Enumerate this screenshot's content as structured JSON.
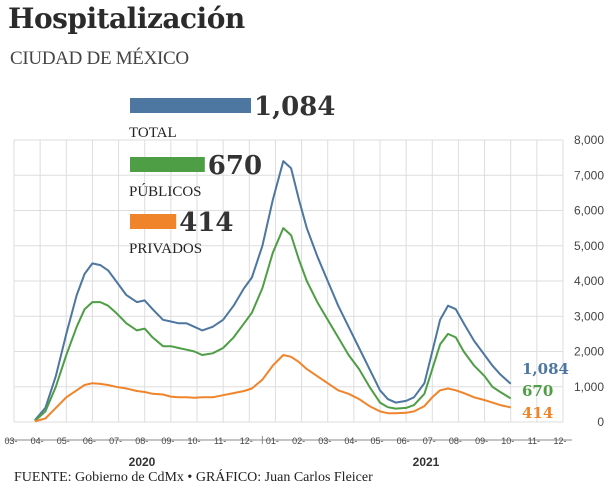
{
  "header": {
    "title": "Hospitalización",
    "subtitle": "CIUDAD DE MÉXICO"
  },
  "footer": {
    "source": "FUENTE: Gobierno de CdMx • GRÁFICO: Juan Carlos Fleicer"
  },
  "colors": {
    "total": "#4d76a0",
    "publicos": "#4e9e45",
    "privados": "#f0842a",
    "grid": "#dddddd",
    "axis": "#888888"
  },
  "chart_data": {
    "type": "line",
    "title": "Hospitalización",
    "subtitle": "CIUDAD DE MÉXICO",
    "ylim": [
      0,
      8000
    ],
    "yticks": [
      0,
      1000,
      2000,
      3000,
      4000,
      5000,
      6000,
      7000,
      8000
    ],
    "ytick_labels": [
      "0",
      "1,000",
      "2,000",
      "3,000",
      "4,000",
      "5,000",
      "6,000",
      "7,000",
      "8,000"
    ],
    "grid": true,
    "x_months": [
      {
        "label": "03-",
        "year": "2020"
      },
      {
        "label": "04-",
        "year": "2020"
      },
      {
        "label": "05-",
        "year": "2020"
      },
      {
        "label": "06-",
        "year": "2020"
      },
      {
        "label": "07-",
        "year": "2020"
      },
      {
        "label": "08-",
        "year": "2020"
      },
      {
        "label": "09-",
        "year": "2020"
      },
      {
        "label": "10-",
        "year": "2020"
      },
      {
        "label": "11-",
        "year": "2020"
      },
      {
        "label": "12-",
        "year": "2020"
      },
      {
        "label": "01-",
        "year": "2021"
      },
      {
        "label": "02-",
        "year": "2021"
      },
      {
        "label": "03-",
        "year": "2021"
      },
      {
        "label": "04-",
        "year": "2021"
      },
      {
        "label": "05-",
        "year": "2021"
      },
      {
        "label": "06-",
        "year": "2021"
      },
      {
        "label": "07-",
        "year": "2021"
      },
      {
        "label": "08-",
        "year": "2021"
      },
      {
        "label": "09-",
        "year": "2021"
      },
      {
        "label": "10-",
        "year": "2021"
      },
      {
        "label": "11-",
        "year": "2021"
      },
      {
        "label": "12-",
        "year": "2021"
      }
    ],
    "years": [
      "2020",
      "2021"
    ],
    "series": [
      {
        "key": "total",
        "name": "TOTAL",
        "latest": "1,084",
        "points": [
          [
            3.8,
            50
          ],
          [
            4.2,
            400
          ],
          [
            4.6,
            1300
          ],
          [
            5.0,
            2500
          ],
          [
            5.4,
            3600
          ],
          [
            5.7,
            4200
          ],
          [
            6.0,
            4500
          ],
          [
            6.3,
            4450
          ],
          [
            6.6,
            4300
          ],
          [
            6.9,
            4000
          ],
          [
            7.3,
            3600
          ],
          [
            7.7,
            3400
          ],
          [
            8.0,
            3450
          ],
          [
            8.3,
            3200
          ],
          [
            8.7,
            2900
          ],
          [
            9.0,
            2850
          ],
          [
            9.3,
            2800
          ],
          [
            9.6,
            2800
          ],
          [
            9.9,
            2700
          ],
          [
            10.2,
            2600
          ],
          [
            10.6,
            2700
          ],
          [
            11.0,
            2900
          ],
          [
            11.4,
            3300
          ],
          [
            11.8,
            3800
          ],
          [
            12.1,
            4100
          ],
          [
            12.5,
            5000
          ],
          [
            12.9,
            6300
          ],
          [
            13.3,
            7400
          ],
          [
            13.6,
            7200
          ],
          [
            13.9,
            6300
          ],
          [
            14.2,
            5500
          ],
          [
            14.6,
            4700
          ],
          [
            15.0,
            4000
          ],
          [
            15.4,
            3300
          ],
          [
            15.8,
            2700
          ],
          [
            16.2,
            2100
          ],
          [
            16.6,
            1500
          ],
          [
            17.0,
            900
          ],
          [
            17.3,
            650
          ],
          [
            17.6,
            550
          ],
          [
            18.0,
            600
          ],
          [
            18.3,
            700
          ],
          [
            18.7,
            1100
          ],
          [
            19.0,
            2000
          ],
          [
            19.3,
            2900
          ],
          [
            19.6,
            3300
          ],
          [
            19.9,
            3200
          ],
          [
            20.2,
            2800
          ],
          [
            20.6,
            2300
          ],
          [
            21.0,
            1900
          ],
          [
            21.3,
            1600
          ],
          [
            21.6,
            1350
          ],
          [
            22.0,
            1084
          ]
        ]
      },
      {
        "key": "publicos",
        "name": "PÚBLICOS",
        "latest": "670",
        "points": [
          [
            3.8,
            30
          ],
          [
            4.2,
            300
          ],
          [
            4.6,
            1000
          ],
          [
            5.0,
            1900
          ],
          [
            5.4,
            2700
          ],
          [
            5.7,
            3200
          ],
          [
            6.0,
            3400
          ],
          [
            6.3,
            3400
          ],
          [
            6.6,
            3300
          ],
          [
            6.9,
            3100
          ],
          [
            7.3,
            2800
          ],
          [
            7.7,
            2600
          ],
          [
            8.0,
            2650
          ],
          [
            8.3,
            2400
          ],
          [
            8.7,
            2150
          ],
          [
            9.0,
            2150
          ],
          [
            9.3,
            2100
          ],
          [
            9.6,
            2050
          ],
          [
            9.9,
            2000
          ],
          [
            10.2,
            1900
          ],
          [
            10.6,
            1950
          ],
          [
            11.0,
            2100
          ],
          [
            11.4,
            2400
          ],
          [
            11.8,
            2800
          ],
          [
            12.1,
            3100
          ],
          [
            12.5,
            3800
          ],
          [
            12.9,
            4800
          ],
          [
            13.3,
            5500
          ],
          [
            13.6,
            5300
          ],
          [
            13.9,
            4600
          ],
          [
            14.2,
            4000
          ],
          [
            14.6,
            3400
          ],
          [
            15.0,
            2900
          ],
          [
            15.4,
            2400
          ],
          [
            15.8,
            1900
          ],
          [
            16.2,
            1500
          ],
          [
            16.6,
            1000
          ],
          [
            17.0,
            550
          ],
          [
            17.3,
            420
          ],
          [
            17.6,
            380
          ],
          [
            18.0,
            400
          ],
          [
            18.3,
            480
          ],
          [
            18.7,
            800
          ],
          [
            19.0,
            1500
          ],
          [
            19.3,
            2200
          ],
          [
            19.6,
            2500
          ],
          [
            19.9,
            2400
          ],
          [
            20.2,
            2000
          ],
          [
            20.6,
            1600
          ],
          [
            21.0,
            1300
          ],
          [
            21.3,
            1000
          ],
          [
            21.6,
            850
          ],
          [
            22.0,
            670
          ]
        ]
      },
      {
        "key": "privados",
        "name": "PRIVADOS",
        "latest": "414",
        "points": [
          [
            3.8,
            20
          ],
          [
            4.2,
            100
          ],
          [
            4.6,
            400
          ],
          [
            5.0,
            700
          ],
          [
            5.4,
            900
          ],
          [
            5.7,
            1050
          ],
          [
            6.0,
            1100
          ],
          [
            6.3,
            1080
          ],
          [
            6.6,
            1050
          ],
          [
            6.9,
            1000
          ],
          [
            7.3,
            950
          ],
          [
            7.7,
            880
          ],
          [
            8.0,
            850
          ],
          [
            8.3,
            800
          ],
          [
            8.7,
            780
          ],
          [
            9.0,
            720
          ],
          [
            9.3,
            700
          ],
          [
            9.6,
            700
          ],
          [
            9.9,
            690
          ],
          [
            10.2,
            700
          ],
          [
            10.6,
            700
          ],
          [
            11.0,
            760
          ],
          [
            11.4,
            820
          ],
          [
            11.8,
            880
          ],
          [
            12.1,
            950
          ],
          [
            12.5,
            1200
          ],
          [
            12.9,
            1600
          ],
          [
            13.3,
            1900
          ],
          [
            13.6,
            1850
          ],
          [
            13.9,
            1700
          ],
          [
            14.2,
            1500
          ],
          [
            14.6,
            1300
          ],
          [
            15.0,
            1100
          ],
          [
            15.4,
            900
          ],
          [
            15.8,
            800
          ],
          [
            16.2,
            650
          ],
          [
            16.6,
            450
          ],
          [
            17.0,
            300
          ],
          [
            17.3,
            250
          ],
          [
            17.6,
            250
          ],
          [
            18.0,
            260
          ],
          [
            18.3,
            300
          ],
          [
            18.7,
            450
          ],
          [
            19.0,
            700
          ],
          [
            19.3,
            900
          ],
          [
            19.6,
            950
          ],
          [
            19.9,
            900
          ],
          [
            20.2,
            820
          ],
          [
            20.6,
            700
          ],
          [
            21.0,
            620
          ],
          [
            21.3,
            550
          ],
          [
            21.6,
            480
          ],
          [
            22.0,
            414
          ]
        ]
      }
    ]
  }
}
